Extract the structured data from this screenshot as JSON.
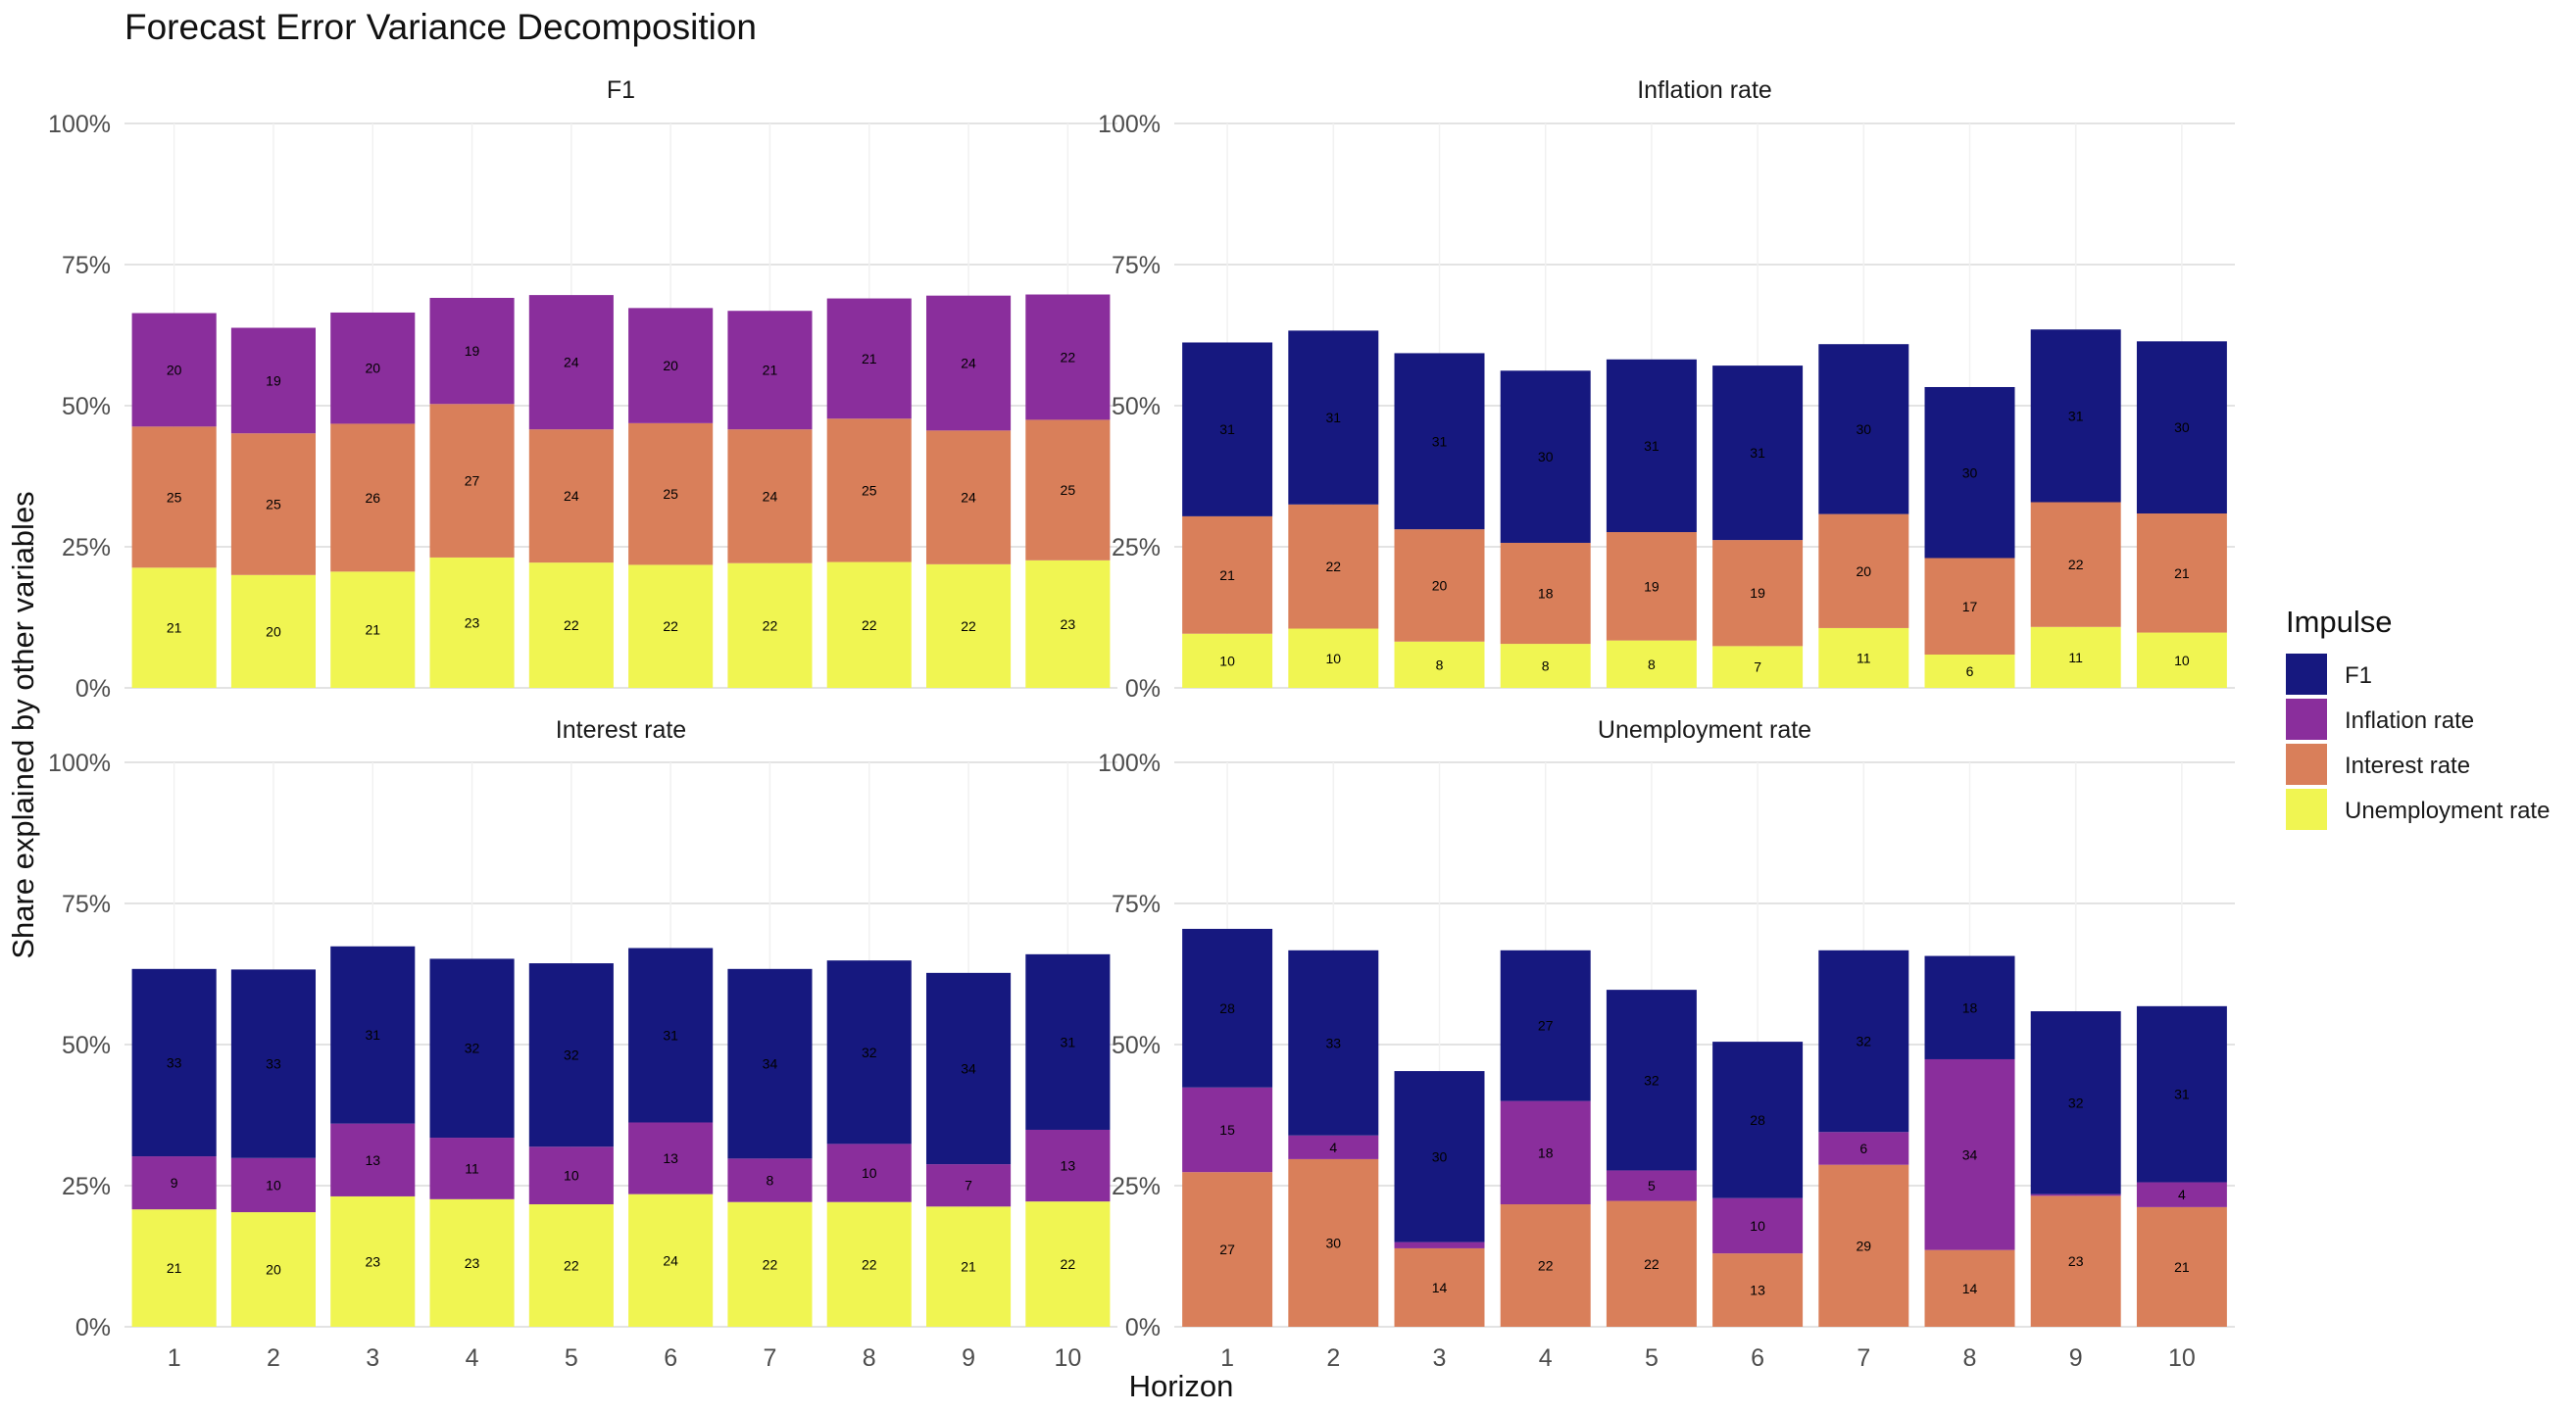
{
  "chart_data": {
    "type": "bar",
    "stacked": true,
    "title": "Forecast Error Variance Decomposition",
    "xlabel": "Horizon",
    "ylabel": "Share explained by other variables",
    "ylim": [
      0,
      100
    ],
    "y_ticks": [
      "0%",
      "25%",
      "50%",
      "75%",
      "100%"
    ],
    "grid": true,
    "legend": {
      "title": "Impulse",
      "position": "right",
      "entries": [
        "F1",
        "Inflation rate",
        "Interest rate",
        "Unemployment rate"
      ]
    },
    "colors": {
      "F1": "#16187F",
      "Inflation rate": "#8A2E9C",
      "Interest rate": "#D97F5A",
      "Unemployment rate": "#F0F552"
    },
    "stack_order": [
      "Unemployment rate",
      "Interest rate",
      "Inflation rate",
      "F1"
    ],
    "categories": [
      "1",
      "2",
      "3",
      "4",
      "5",
      "6",
      "7",
      "8",
      "9",
      "10"
    ],
    "panels": [
      {
        "name": "F1",
        "series": [
          {
            "name": "Unemployment rate",
            "values": [
              21.3,
              20.0,
              20.6,
              23.1,
              22.2,
              21.8,
              22.1,
              22.3,
              21.9,
              22.6
            ],
            "labels": [
              "21",
              "20",
              "21",
              "23",
              "22",
              "22",
              "22",
              "22",
              "22",
              "23"
            ]
          },
          {
            "name": "Interest rate",
            "values": [
              25.0,
              25.1,
              26.2,
              27.2,
              23.6,
              25.1,
              23.7,
              25.4,
              23.7,
              24.9
            ],
            "labels": [
              "25",
              "25",
              "26",
              "27",
              "24",
              "25",
              "24",
              "25",
              "24",
              "25"
            ]
          },
          {
            "name": "Inflation rate",
            "values": [
              20.1,
              18.7,
              19.7,
              18.8,
              23.8,
              20.4,
              21.0,
              21.3,
              23.9,
              22.2
            ],
            "labels": [
              "20",
              "19",
              "20",
              "19",
              "24",
              "20",
              "21",
              "21",
              "24",
              "22"
            ]
          }
        ]
      },
      {
        "name": "Inflation rate",
        "series": [
          {
            "name": "Unemployment rate",
            "values": [
              9.6,
              10.5,
              8.2,
              7.8,
              8.4,
              7.4,
              10.6,
              5.9,
              10.8,
              9.8
            ],
            "labels": [
              "10",
              "10",
              "8",
              "8",
              "8",
              "7",
              "11",
              "6",
              "11",
              "10"
            ]
          },
          {
            "name": "Interest rate",
            "values": [
              20.8,
              22.0,
              19.9,
              17.9,
              19.2,
              18.8,
              20.2,
              17.1,
              22.1,
              21.1
            ],
            "labels": [
              "21",
              "22",
              "20",
              "18",
              "19",
              "19",
              "20",
              "17",
              "22",
              "21"
            ]
          },
          {
            "name": "F1",
            "values": [
              30.8,
              30.8,
              31.2,
              30.5,
              30.6,
              30.9,
              30.1,
              30.3,
              30.6,
              30.5
            ],
            "labels": [
              "31",
              "31",
              "31",
              "30",
              "31",
              "31",
              "30",
              "30",
              "31",
              "30"
            ]
          }
        ]
      },
      {
        "name": "Interest rate",
        "series": [
          {
            "name": "Unemployment rate",
            "values": [
              20.8,
              20.3,
              23.1,
              22.6,
              21.7,
              23.5,
              22.1,
              22.1,
              21.3,
              22.2
            ],
            "labels": [
              "21",
              "20",
              "23",
              "23",
              "22",
              "24",
              "22",
              "22",
              "21",
              "22"
            ]
          },
          {
            "name": "Inflation rate",
            "values": [
              9.4,
              9.6,
              12.9,
              10.9,
              10.2,
              12.7,
              7.7,
              10.3,
              7.5,
              12.7
            ],
            "labels": [
              "9",
              "10",
              "13",
              "11",
              "10",
              "13",
              "8",
              "10",
              "7",
              "13"
            ]
          },
          {
            "name": "F1",
            "values": [
              33.2,
              33.4,
              31.4,
              31.7,
              32.5,
              30.9,
              33.6,
              32.5,
              33.9,
              31.1
            ],
            "labels": [
              "33",
              "33",
              "31",
              "32",
              "32",
              "31",
              "34",
              "32",
              "34",
              "31"
            ]
          }
        ]
      },
      {
        "name": "Unemployment rate",
        "series": [
          {
            "name": "Interest rate",
            "values": [
              27.4,
              29.7,
              13.9,
              21.7,
              22.3,
              13.0,
              28.7,
              13.6,
              23.2,
              21.2
            ],
            "labels": [
              "27",
              "30",
              "14",
              "22",
              "22",
              "13",
              "29",
              "14",
              "23",
              "21"
            ]
          },
          {
            "name": "Inflation rate",
            "values": [
              15.0,
              4.2,
              1.1,
              18.3,
              5.4,
              9.8,
              5.8,
              33.8,
              0.3,
              4.4
            ],
            "labels": [
              "15",
              "4",
              "",
              "18",
              "5",
              "10",
              "6",
              "34",
              "",
              "4"
            ]
          },
          {
            "name": "F1",
            "values": [
              28.1,
              32.8,
              30.3,
              26.7,
              32.0,
              27.7,
              32.2,
              18.3,
              32.4,
              31.2
            ],
            "labels": [
              "28",
              "33",
              "30",
              "27",
              "32",
              "28",
              "32",
              "18",
              "32",
              "31"
            ]
          }
        ]
      }
    ]
  }
}
